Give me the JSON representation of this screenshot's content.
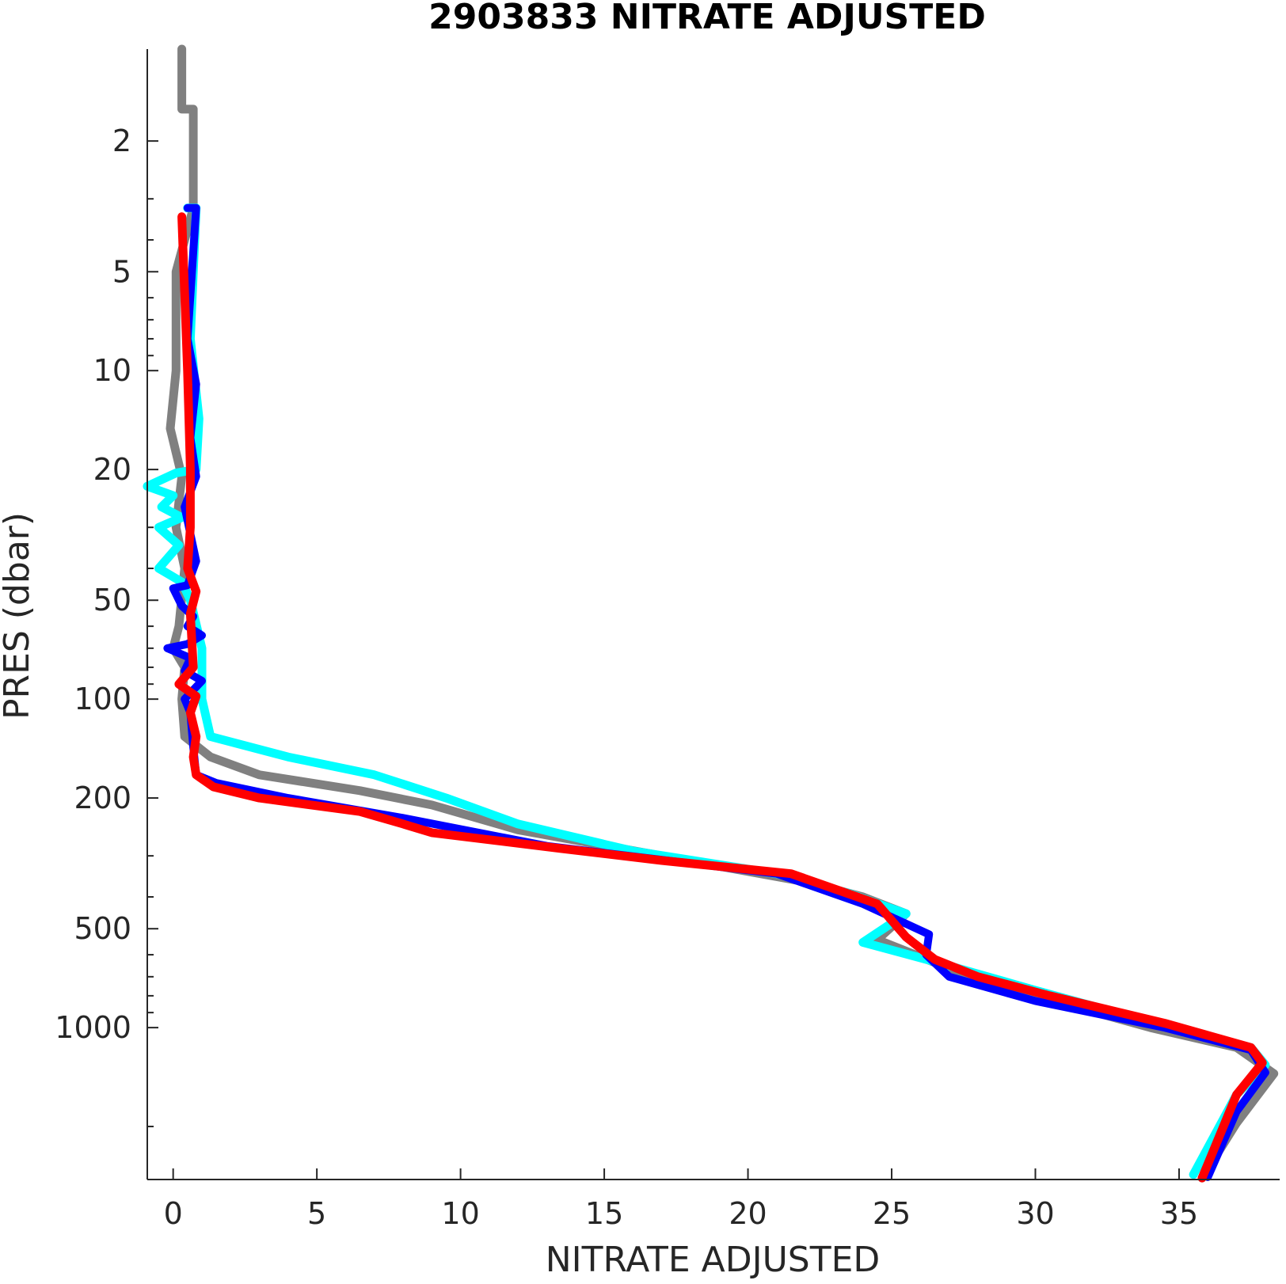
{
  "chart_data": {
    "type": "line",
    "title": "2903833  NITRATE ADJUSTED",
    "xlabel": "NITRATE ADJUSTED",
    "ylabel": "PRES (dbar)",
    "xlim": [
      -0.9,
      38.5
    ],
    "ylim": [
      1.05,
      2900
    ],
    "y_scale": "log",
    "y_reversed": true,
    "xticks": [
      0,
      5,
      10,
      15,
      20,
      25,
      30,
      35
    ],
    "yticks": [
      2,
      5,
      10,
      20,
      50,
      100,
      200,
      500,
      1000
    ],
    "yticklabels": [
      "2",
      "5",
      "10",
      "20",
      "50",
      "100",
      "200",
      "500",
      "1000"
    ],
    "grid": false,
    "colors": {
      "gray": "#808080",
      "cyan": "#00ffff",
      "blue": "#0000ff",
      "red": "#ff0000",
      "axis": "#262626"
    },
    "series": [
      {
        "color": "gray",
        "width": 11,
        "points": [
          [
            0.3,
            1.05
          ],
          [
            0.3,
            1.6
          ],
          [
            0.7,
            1.6
          ],
          [
            0.7,
            3.2
          ],
          [
            0.1,
            5
          ],
          [
            0.1,
            10
          ],
          [
            -0.1,
            15
          ],
          [
            0.3,
            21
          ],
          [
            0.1,
            30
          ],
          [
            0.4,
            40
          ],
          [
            0.2,
            60
          ],
          [
            0.0,
            70
          ],
          [
            0.4,
            80
          ],
          [
            0.3,
            100
          ],
          [
            0.4,
            130
          ],
          [
            1.3,
            150
          ],
          [
            3.0,
            170
          ],
          [
            6.5,
            190
          ],
          [
            9.0,
            210
          ],
          [
            12.0,
            250
          ],
          [
            17.0,
            300
          ],
          [
            22.0,
            360
          ],
          [
            24.0,
            400
          ],
          [
            25.5,
            450
          ],
          [
            24.5,
            540
          ],
          [
            27.0,
            660
          ],
          [
            30.0,
            800
          ],
          [
            34.0,
            1000
          ],
          [
            37.0,
            1150
          ],
          [
            38.3,
            1380
          ],
          [
            37.0,
            1950
          ],
          [
            35.8,
            2870
          ]
        ]
      },
      {
        "color": "cyan",
        "width": 11,
        "points": [
          [
            0.5,
            3.2
          ],
          [
            0.8,
            3.2
          ],
          [
            0.6,
            8
          ],
          [
            0.9,
            14
          ],
          [
            0.8,
            20
          ],
          [
            0.1,
            20.5
          ],
          [
            -0.9,
            22.5
          ],
          [
            0.0,
            24
          ],
          [
            -0.4,
            26
          ],
          [
            0.3,
            28
          ],
          [
            -0.5,
            30
          ],
          [
            0.2,
            34
          ],
          [
            -0.5,
            40
          ],
          [
            0.3,
            44
          ],
          [
            0.6,
            50
          ],
          [
            1.0,
            70
          ],
          [
            1.0,
            100
          ],
          [
            1.3,
            130
          ],
          [
            4.0,
            150
          ],
          [
            7.0,
            170
          ],
          [
            9.5,
            200
          ],
          [
            12.0,
            240
          ],
          [
            16.0,
            290
          ],
          [
            21.0,
            340
          ],
          [
            23.5,
            390
          ],
          [
            25.5,
            450
          ],
          [
            24.0,
            550
          ],
          [
            26.5,
            630
          ],
          [
            30.0,
            770
          ],
          [
            34.0,
            960
          ],
          [
            37.5,
            1150
          ],
          [
            38.0,
            1300
          ],
          [
            37.0,
            1600
          ],
          [
            35.5,
            2800
          ]
        ]
      },
      {
        "color": "blue",
        "width": 10,
        "points": [
          [
            0.5,
            3.2
          ],
          [
            0.8,
            3.2
          ],
          [
            0.5,
            8
          ],
          [
            0.8,
            11
          ],
          [
            0.6,
            16
          ],
          [
            0.8,
            21
          ],
          [
            0.4,
            26
          ],
          [
            0.8,
            38
          ],
          [
            0.5,
            45
          ],
          [
            0.0,
            46
          ],
          [
            0.3,
            52
          ],
          [
            0.7,
            56
          ],
          [
            0.5,
            60
          ],
          [
            1.0,
            64
          ],
          [
            0.5,
            68
          ],
          [
            -0.2,
            70
          ],
          [
            0.6,
            75
          ],
          [
            0.4,
            82
          ],
          [
            1.0,
            88
          ],
          [
            0.4,
            100
          ],
          [
            0.6,
            110
          ],
          [
            0.7,
            140
          ],
          [
            0.8,
            170
          ],
          [
            1.5,
            180
          ],
          [
            4.0,
            200
          ],
          [
            8.0,
            230
          ],
          [
            13.0,
            280
          ],
          [
            21.0,
            340
          ],
          [
            24.0,
            420
          ],
          [
            26.3,
            520
          ],
          [
            26.2,
            600
          ],
          [
            27.0,
            700
          ],
          [
            30.0,
            830
          ],
          [
            34.5,
            1000
          ],
          [
            37.5,
            1170
          ],
          [
            38.0,
            1370
          ],
          [
            37.0,
            1800
          ],
          [
            36.0,
            2850
          ]
        ]
      },
      {
        "color": "red",
        "width": 11,
        "points": [
          [
            0.3,
            3.4
          ],
          [
            0.5,
            10
          ],
          [
            0.6,
            20
          ],
          [
            0.6,
            30
          ],
          [
            0.5,
            40
          ],
          [
            0.8,
            47
          ],
          [
            0.6,
            55
          ],
          [
            0.7,
            80
          ],
          [
            0.2,
            90
          ],
          [
            0.8,
            98
          ],
          [
            0.6,
            110
          ],
          [
            0.8,
            130
          ],
          [
            0.7,
            150
          ],
          [
            0.8,
            170
          ],
          [
            1.4,
            185
          ],
          [
            3.0,
            200
          ],
          [
            6.5,
            220
          ],
          [
            8.0,
            240
          ],
          [
            9.0,
            255
          ],
          [
            13.5,
            285
          ],
          [
            17.0,
            310
          ],
          [
            21.5,
            340
          ],
          [
            24.5,
            420
          ],
          [
            25.5,
            530
          ],
          [
            26.5,
            620
          ],
          [
            28.0,
            700
          ],
          [
            30.5,
            800
          ],
          [
            34.5,
            970
          ],
          [
            37.5,
            1150
          ],
          [
            37.9,
            1280
          ],
          [
            37.0,
            1600
          ],
          [
            35.8,
            2870
          ]
        ]
      }
    ]
  }
}
